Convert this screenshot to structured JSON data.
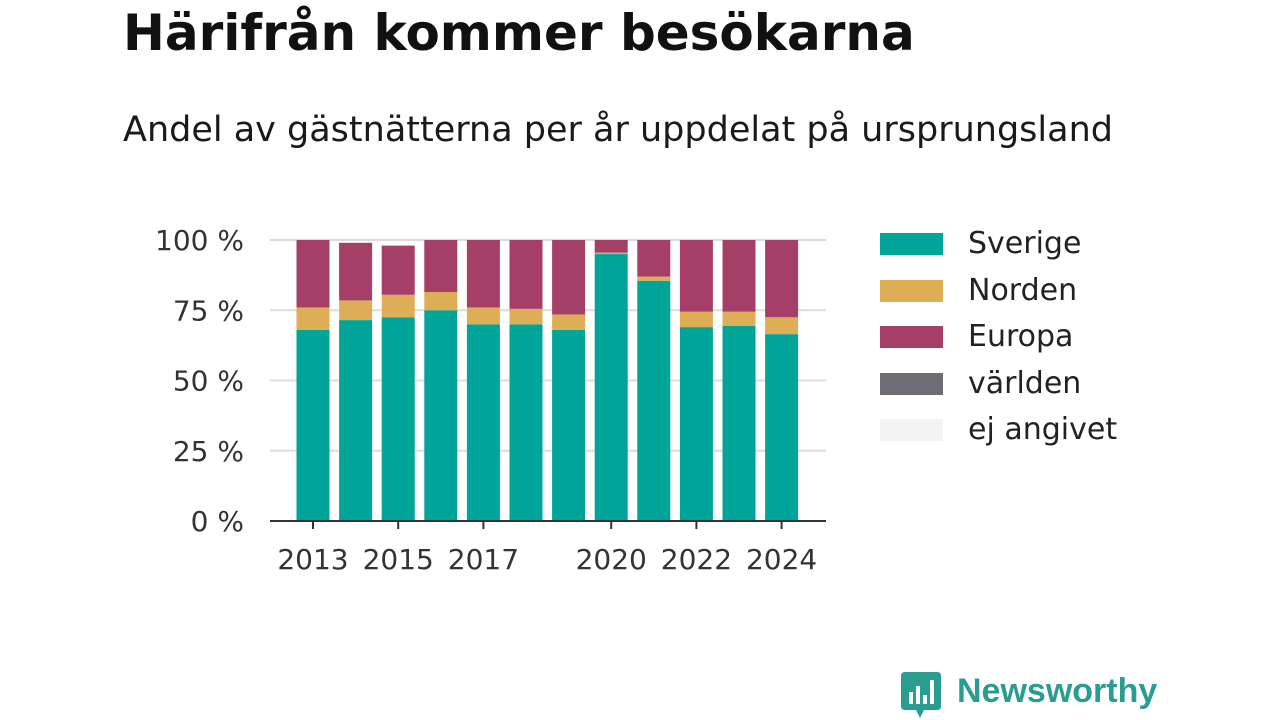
{
  "header": {
    "title": "Härifrån kommer besökarna",
    "subtitle": "Andel av gästnätterna per år uppdelat på ursprungsland"
  },
  "brand": {
    "name": "Newsworthy",
    "color": "#2a9d90",
    "icon": "newsworthy-logo-icon"
  },
  "chart_data": {
    "type": "bar",
    "stacked": true,
    "categories": [
      "2013",
      "2014",
      "2015",
      "2016",
      "2017",
      "2018",
      "2019",
      "2020",
      "2021",
      "2022",
      "2023",
      "2024"
    ],
    "x_tick_labels": [
      "2013",
      "2015",
      "2017",
      "2020",
      "2022",
      "2024"
    ],
    "y_ticks": [
      0,
      25,
      50,
      75,
      100
    ],
    "y_tick_labels": [
      "0 %",
      "25 %",
      "50 %",
      "75 %",
      "100 %"
    ],
    "ylim": [
      0,
      100
    ],
    "grid": true,
    "legend_position": "right",
    "series": [
      {
        "name": "Sverige",
        "color": "#00a59a",
        "values": [
          68,
          71.5,
          72.5,
          75,
          70,
          70,
          68,
          95,
          85.5,
          69,
          69.5,
          66.5
        ]
      },
      {
        "name": "Norden",
        "color": "#deae57",
        "values": [
          8,
          7,
          8,
          6.5,
          6,
          5.5,
          5.5,
          0.5,
          1.5,
          5.5,
          5,
          6
        ]
      },
      {
        "name": "Europa",
        "color": "#a63f67",
        "values": [
          24,
          20.5,
          17.5,
          18.5,
          24,
          24.5,
          26.5,
          4.5,
          13,
          25.5,
          25.5,
          27.5
        ]
      },
      {
        "name": "världen",
        "color": "#6d6e75",
        "values": [
          0,
          0,
          0,
          0,
          0,
          0,
          0,
          0,
          0,
          0,
          0,
          0
        ]
      },
      {
        "name": "ej angivet",
        "color": "#f3f3f1",
        "values": [
          0,
          0,
          0,
          0,
          0,
          0,
          0,
          0,
          0,
          0,
          0,
          0
        ]
      }
    ]
  }
}
